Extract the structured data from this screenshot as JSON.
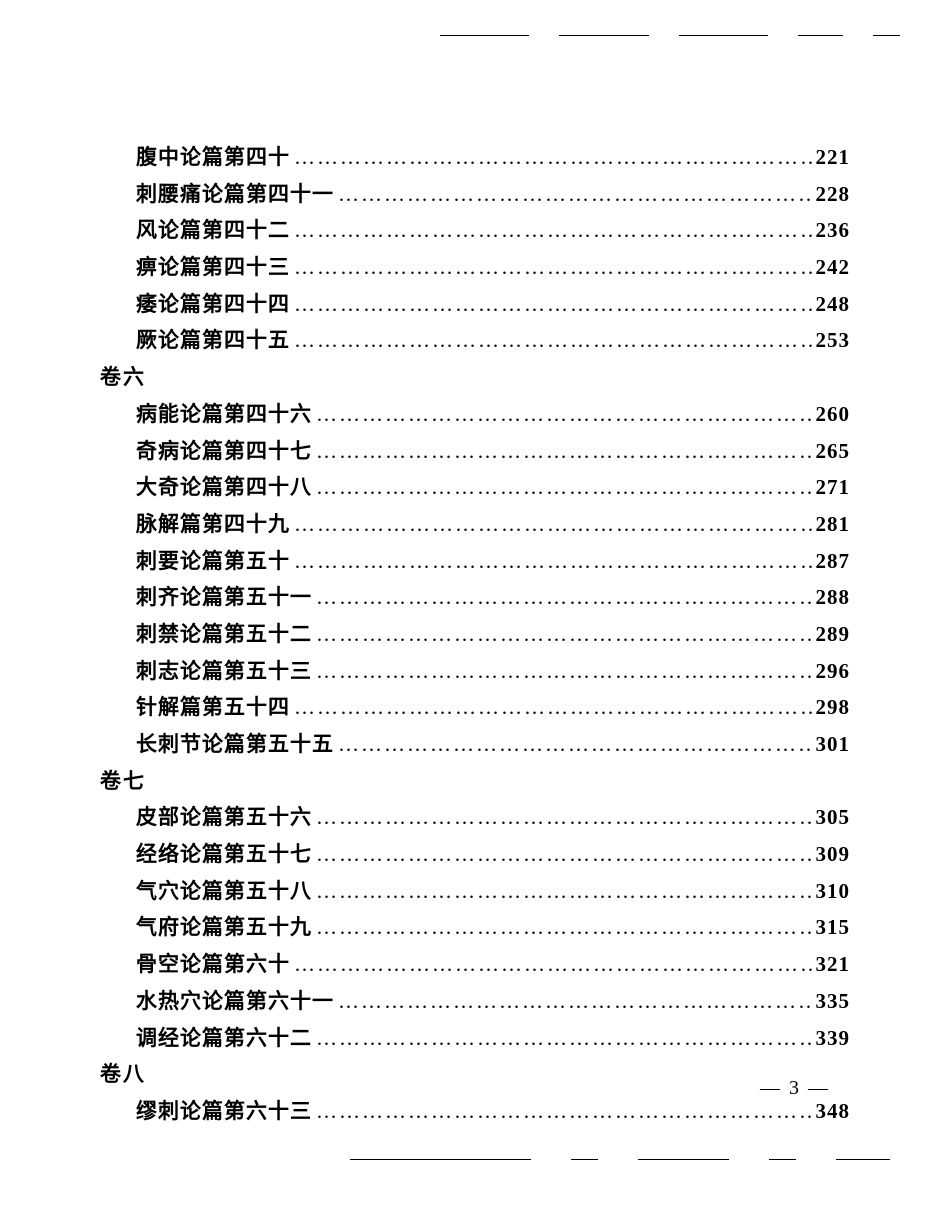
{
  "page_number_label": "— 3 —",
  "font_color": "#000000",
  "background_color": "#ffffff",
  "toc": [
    {
      "type": "entry",
      "indent": true,
      "title": "腹中论篇第四十",
      "page": "221"
    },
    {
      "type": "entry",
      "indent": true,
      "title": "刺腰痛论篇第四十一",
      "page": "228"
    },
    {
      "type": "entry",
      "indent": true,
      "title": "风论篇第四十二",
      "page": "236"
    },
    {
      "type": "entry",
      "indent": true,
      "title": "痹论篇第四十三",
      "page": "242"
    },
    {
      "type": "entry",
      "indent": true,
      "title": "痿论篇第四十四",
      "page": "248"
    },
    {
      "type": "entry",
      "indent": true,
      "title": "厥论篇第四十五",
      "page": "253"
    },
    {
      "type": "heading",
      "title": "卷六"
    },
    {
      "type": "entry",
      "indent": true,
      "title": "病能论篇第四十六",
      "page": "260"
    },
    {
      "type": "entry",
      "indent": true,
      "title": "奇病论篇第四十七",
      "page": "265"
    },
    {
      "type": "entry",
      "indent": true,
      "title": "大奇论篇第四十八",
      "page": "271"
    },
    {
      "type": "entry",
      "indent": true,
      "title": "脉解篇第四十九",
      "page": "281"
    },
    {
      "type": "entry",
      "indent": true,
      "title": "刺要论篇第五十",
      "page": "287"
    },
    {
      "type": "entry",
      "indent": true,
      "title": "刺齐论篇第五十一",
      "page": "288"
    },
    {
      "type": "entry",
      "indent": true,
      "title": "刺禁论篇第五十二",
      "page": "289"
    },
    {
      "type": "entry",
      "indent": true,
      "title": "刺志论篇第五十三",
      "page": "296"
    },
    {
      "type": "entry",
      "indent": true,
      "title": "针解篇第五十四",
      "page": "298"
    },
    {
      "type": "entry",
      "indent": true,
      "title": "长刺节论篇第五十五",
      "page": "301"
    },
    {
      "type": "heading",
      "title": "卷七"
    },
    {
      "type": "entry",
      "indent": true,
      "title": "皮部论篇第五十六",
      "page": "305"
    },
    {
      "type": "entry",
      "indent": true,
      "title": "经络论篇第五十七",
      "page": "309"
    },
    {
      "type": "entry",
      "indent": true,
      "title": "气穴论篇第五十八",
      "page": "310"
    },
    {
      "type": "entry",
      "indent": true,
      "title": "气府论篇第五十九",
      "page": "315"
    },
    {
      "type": "entry",
      "indent": true,
      "title": "骨空论篇第六十",
      "page": "321"
    },
    {
      "type": "entry",
      "indent": true,
      "title": "水热穴论篇第六十一",
      "page": "335"
    },
    {
      "type": "entry",
      "indent": true,
      "title": "调经论篇第六十二",
      "page": "339"
    },
    {
      "type": "heading",
      "title": "卷八"
    },
    {
      "type": "entry",
      "indent": true,
      "title": "缪刺论篇第六十三",
      "page": "348"
    }
  ]
}
